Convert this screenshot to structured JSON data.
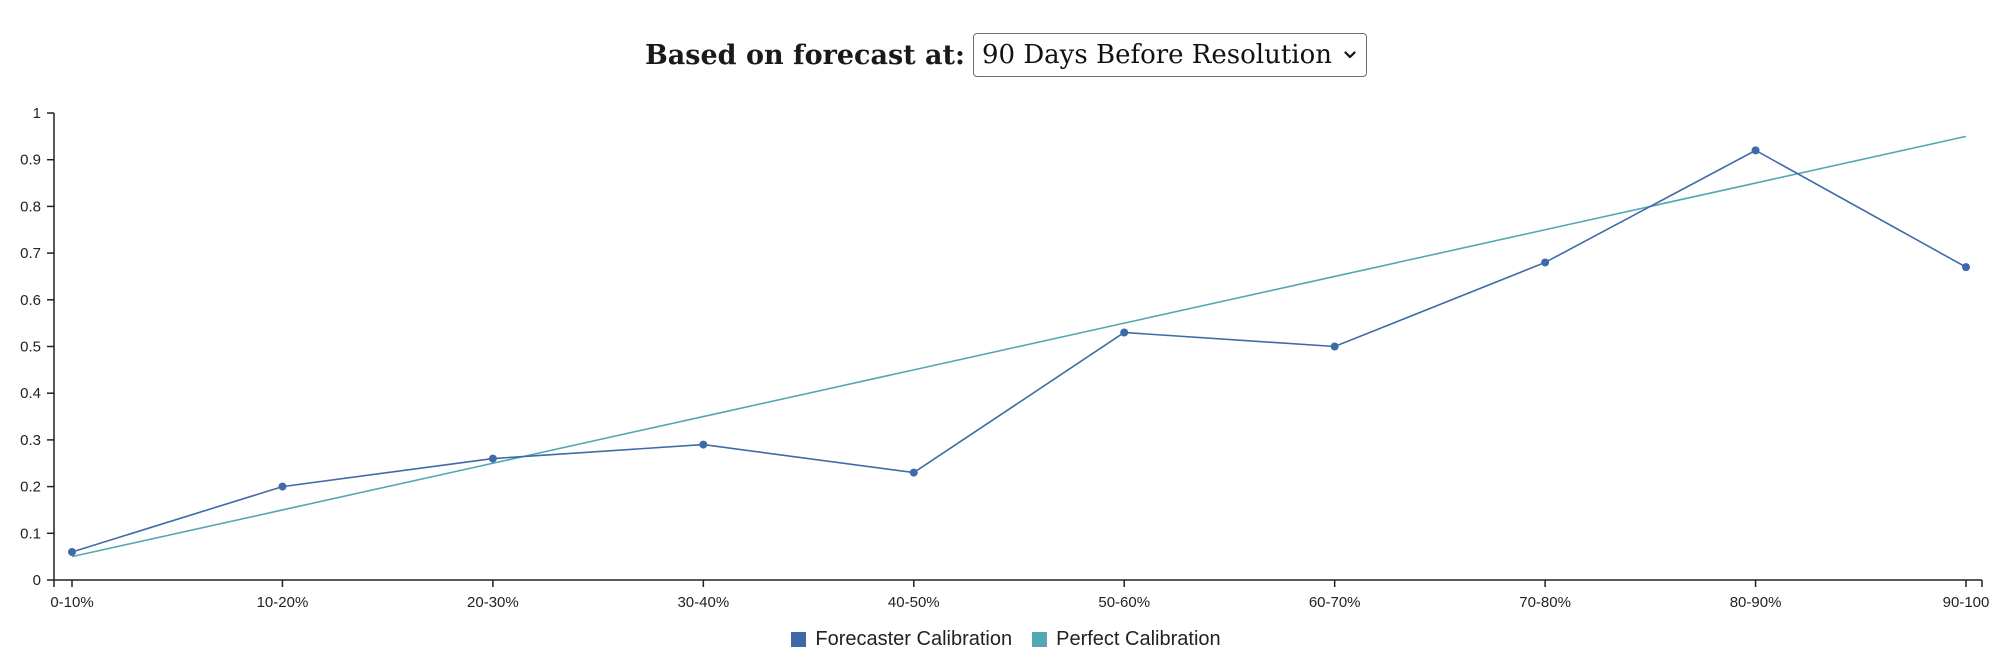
{
  "controls": {
    "forecast_label": "Based on forecast at:",
    "forecast_selected": "90 Days Before Resolution"
  },
  "colors": {
    "forecaster": "#3f6aa8",
    "perfect": "#52a7b3",
    "axis": "#222222"
  },
  "chart_data": {
    "type": "line",
    "title": "",
    "xlabel": "",
    "ylabel": "",
    "categories": [
      "0-10%",
      "10-20%",
      "20-30%",
      "30-40%",
      "40-50%",
      "50-60%",
      "60-70%",
      "70-80%",
      "80-90%",
      "90-100"
    ],
    "y_ticks": [
      "0",
      "0.1",
      "0.2",
      "0.3",
      "0.4",
      "0.5",
      "0.6",
      "0.7",
      "0.8",
      "0.9",
      "1"
    ],
    "ylim": [
      0,
      1
    ],
    "grid": false,
    "legend_position": "bottom-center",
    "series": [
      {
        "name": "Forecaster Calibration",
        "values": [
          0.06,
          0.2,
          0.26,
          0.29,
          0.23,
          0.53,
          0.5,
          0.68,
          0.92,
          0.67
        ],
        "markers": true
      },
      {
        "name": "Perfect Calibration",
        "values": [
          0.05,
          0.15,
          0.25,
          0.35,
          0.45,
          0.55,
          0.65,
          0.75,
          0.85,
          0.95
        ],
        "markers": false
      }
    ]
  }
}
